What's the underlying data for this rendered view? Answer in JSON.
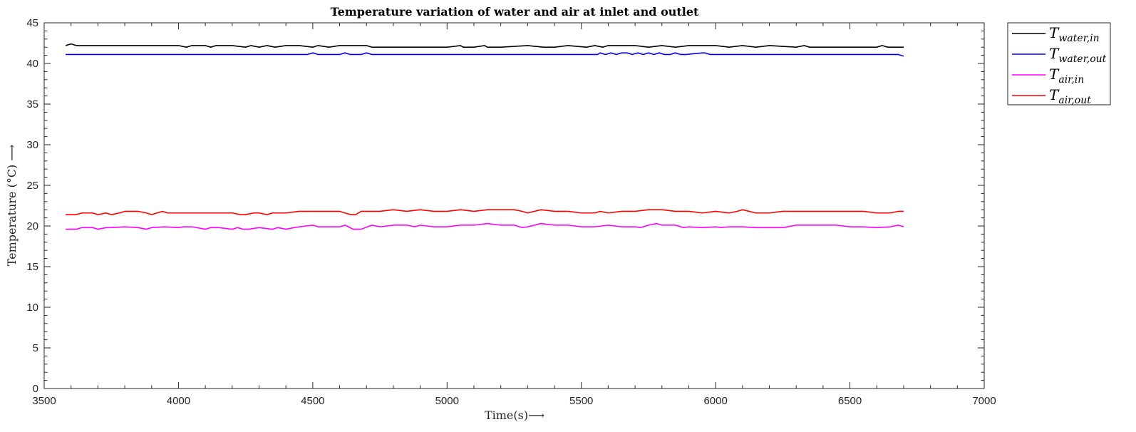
{
  "chart_data": {
    "type": "line",
    "title": "Temperature variation of water and air at inlet and outlet",
    "xlabel": "Time(s)⟶",
    "ylabel": "Temperature (°C) ⟶",
    "xlim": [
      3500,
      7000
    ],
    "ylim": [
      0,
      45
    ],
    "xticks": [
      3500,
      4000,
      4500,
      5000,
      5500,
      6000,
      6500,
      7000
    ],
    "yticks": [
      0,
      5,
      10,
      15,
      20,
      25,
      30,
      35,
      40,
      45
    ],
    "grid": false,
    "legend_position": "outside-top-right",
    "series": [
      {
        "name": "T_water,in",
        "legend_main": "T",
        "legend_sub": "water,in",
        "color": "#000000",
        "x": [
          3580,
          3600,
          3620,
          3700,
          3800,
          3900,
          4000,
          4030,
          4050,
          4100,
          4120,
          4140,
          4200,
          4250,
          4270,
          4300,
          4330,
          4360,
          4400,
          4450,
          4500,
          4520,
          4560,
          4600,
          4700,
          4720,
          4800,
          4900,
          5000,
          5050,
          5060,
          5100,
          5140,
          5150,
          5200,
          5300,
          5360,
          5400,
          5450,
          5520,
          5550,
          5580,
          5600,
          5700,
          5750,
          5800,
          5850,
          5900,
          6000,
          6050,
          6100,
          6150,
          6200,
          6300,
          6330,
          6350,
          6400,
          6500,
          6600,
          6620,
          6640,
          6700
        ],
        "y": [
          42.2,
          42.4,
          42.2,
          42.2,
          42.2,
          42.2,
          42.2,
          42.0,
          42.2,
          42.2,
          42.0,
          42.2,
          42.2,
          42.0,
          42.2,
          42.0,
          42.2,
          42.0,
          42.2,
          42.2,
          42.0,
          42.2,
          42.0,
          42.2,
          42.2,
          42.0,
          42.0,
          42.0,
          42.0,
          42.2,
          42.0,
          42.0,
          42.2,
          42.0,
          42.0,
          42.2,
          42.0,
          42.0,
          42.2,
          42.0,
          42.2,
          42.0,
          42.2,
          42.2,
          42.0,
          42.2,
          42.0,
          42.2,
          42.2,
          42.0,
          42.2,
          42.0,
          42.2,
          42.0,
          42.2,
          42.0,
          42.0,
          42.0,
          42.0,
          42.2,
          42.0,
          42.0
        ]
      },
      {
        "name": "T_water,out",
        "legend_main": "T",
        "legend_sub": "water,out",
        "color": "#0000ff",
        "x": [
          3580,
          3700,
          3900,
          4100,
          4300,
          4480,
          4500,
          4520,
          4600,
          4620,
          4640,
          4680,
          4700,
          4720,
          4900,
          5100,
          5300,
          5500,
          5560,
          5570,
          5590,
          5610,
          5630,
          5650,
          5670,
          5690,
          5710,
          5730,
          5750,
          5770,
          5790,
          5810,
          5830,
          5850,
          5870,
          5890,
          5950,
          5960,
          5980,
          6100,
          6300,
          6500,
          6680,
          6700
        ],
        "y": [
          41.1,
          41.1,
          41.1,
          41.1,
          41.1,
          41.1,
          41.3,
          41.1,
          41.1,
          41.3,
          41.1,
          41.1,
          41.3,
          41.1,
          41.1,
          41.1,
          41.1,
          41.1,
          41.1,
          41.3,
          41.1,
          41.3,
          41.1,
          41.3,
          41.3,
          41.1,
          41.3,
          41.1,
          41.3,
          41.1,
          41.3,
          41.1,
          41.1,
          41.3,
          41.1,
          41.1,
          41.3,
          41.3,
          41.1,
          41.1,
          41.1,
          41.1,
          41.1,
          40.9
        ]
      },
      {
        "name": "T_air,in",
        "legend_main": "T",
        "legend_sub": "air,in",
        "color": "#ff00ff",
        "x": [
          3580,
          3620,
          3640,
          3680,
          3700,
          3730,
          3750,
          3800,
          3850,
          3880,
          3900,
          3950,
          4000,
          4020,
          4050,
          4100,
          4120,
          4150,
          4200,
          4220,
          4240,
          4260,
          4300,
          4350,
          4370,
          4400,
          4430,
          4450,
          4500,
          4520,
          4600,
          4620,
          4650,
          4680,
          4720,
          4750,
          4800,
          4850,
          4880,
          4900,
          4950,
          5000,
          5050,
          5100,
          5150,
          5200,
          5250,
          5280,
          5300,
          5350,
          5400,
          5450,
          5500,
          5550,
          5600,
          5650,
          5700,
          5720,
          5750,
          5780,
          5800,
          5850,
          5880,
          5900,
          5950,
          6000,
          6020,
          6050,
          6100,
          6150,
          6200,
          6250,
          6300,
          6350,
          6400,
          6450,
          6500,
          6550,
          6600,
          6650,
          6680,
          6700
        ],
        "y": [
          19.6,
          19.6,
          19.8,
          19.8,
          19.6,
          19.8,
          19.8,
          19.9,
          19.8,
          19.6,
          19.8,
          19.9,
          19.8,
          19.9,
          19.9,
          19.6,
          19.8,
          19.8,
          19.6,
          19.8,
          19.6,
          19.6,
          19.8,
          19.6,
          19.8,
          19.6,
          19.8,
          19.9,
          20.1,
          19.9,
          19.9,
          20.1,
          19.6,
          19.6,
          20.1,
          19.9,
          20.1,
          20.1,
          19.9,
          20.1,
          19.9,
          19.9,
          20.1,
          20.1,
          20.3,
          20.1,
          20.1,
          19.8,
          19.9,
          20.3,
          20.1,
          20.1,
          19.9,
          19.9,
          20.1,
          19.9,
          19.9,
          19.8,
          20.1,
          20.3,
          20.1,
          20.1,
          19.8,
          19.9,
          19.8,
          19.9,
          19.8,
          19.9,
          19.9,
          19.8,
          19.8,
          19.8,
          20.1,
          20.1,
          20.1,
          20.1,
          19.9,
          19.9,
          19.8,
          19.9,
          20.1,
          19.9
        ]
      },
      {
        "name": "T_air,out",
        "legend_main": "T",
        "legend_sub": "air,out",
        "color": "#ff0000",
        "x": [
          3580,
          3620,
          3640,
          3680,
          3700,
          3730,
          3750,
          3780,
          3800,
          3850,
          3880,
          3900,
          3940,
          3960,
          4000,
          4100,
          4200,
          4230,
          4250,
          4280,
          4300,
          4330,
          4350,
          4370,
          4400,
          4450,
          4470,
          4500,
          4600,
          4640,
          4660,
          4680,
          4700,
          4750,
          4800,
          4850,
          4900,
          4950,
          5000,
          5050,
          5100,
          5150,
          5200,
          5250,
          5280,
          5300,
          5350,
          5400,
          5450,
          5500,
          5550,
          5570,
          5600,
          5650,
          5700,
          5750,
          5800,
          5850,
          5900,
          5950,
          6000,
          6050,
          6080,
          6100,
          6150,
          6200,
          6250,
          6300,
          6350,
          6400,
          6450,
          6500,
          6550,
          6600,
          6650,
          6680,
          6700
        ],
        "y": [
          21.4,
          21.4,
          21.6,
          21.6,
          21.4,
          21.6,
          21.4,
          21.6,
          21.8,
          21.8,
          21.6,
          21.4,
          21.8,
          21.6,
          21.6,
          21.6,
          21.6,
          21.4,
          21.4,
          21.6,
          21.6,
          21.4,
          21.6,
          21.6,
          21.6,
          21.8,
          21.8,
          21.8,
          21.8,
          21.4,
          21.4,
          21.8,
          21.8,
          21.8,
          22.0,
          21.8,
          22.0,
          21.8,
          21.8,
          22.0,
          21.8,
          22.0,
          22.0,
          22.0,
          21.8,
          21.6,
          22.0,
          21.8,
          21.8,
          21.6,
          21.6,
          21.8,
          21.6,
          21.8,
          21.8,
          22.0,
          22.0,
          21.8,
          21.8,
          21.6,
          21.8,
          21.6,
          21.8,
          22.0,
          21.6,
          21.6,
          21.8,
          21.8,
          21.8,
          21.8,
          21.8,
          21.8,
          21.8,
          21.6,
          21.6,
          21.8,
          21.8
        ]
      }
    ]
  }
}
